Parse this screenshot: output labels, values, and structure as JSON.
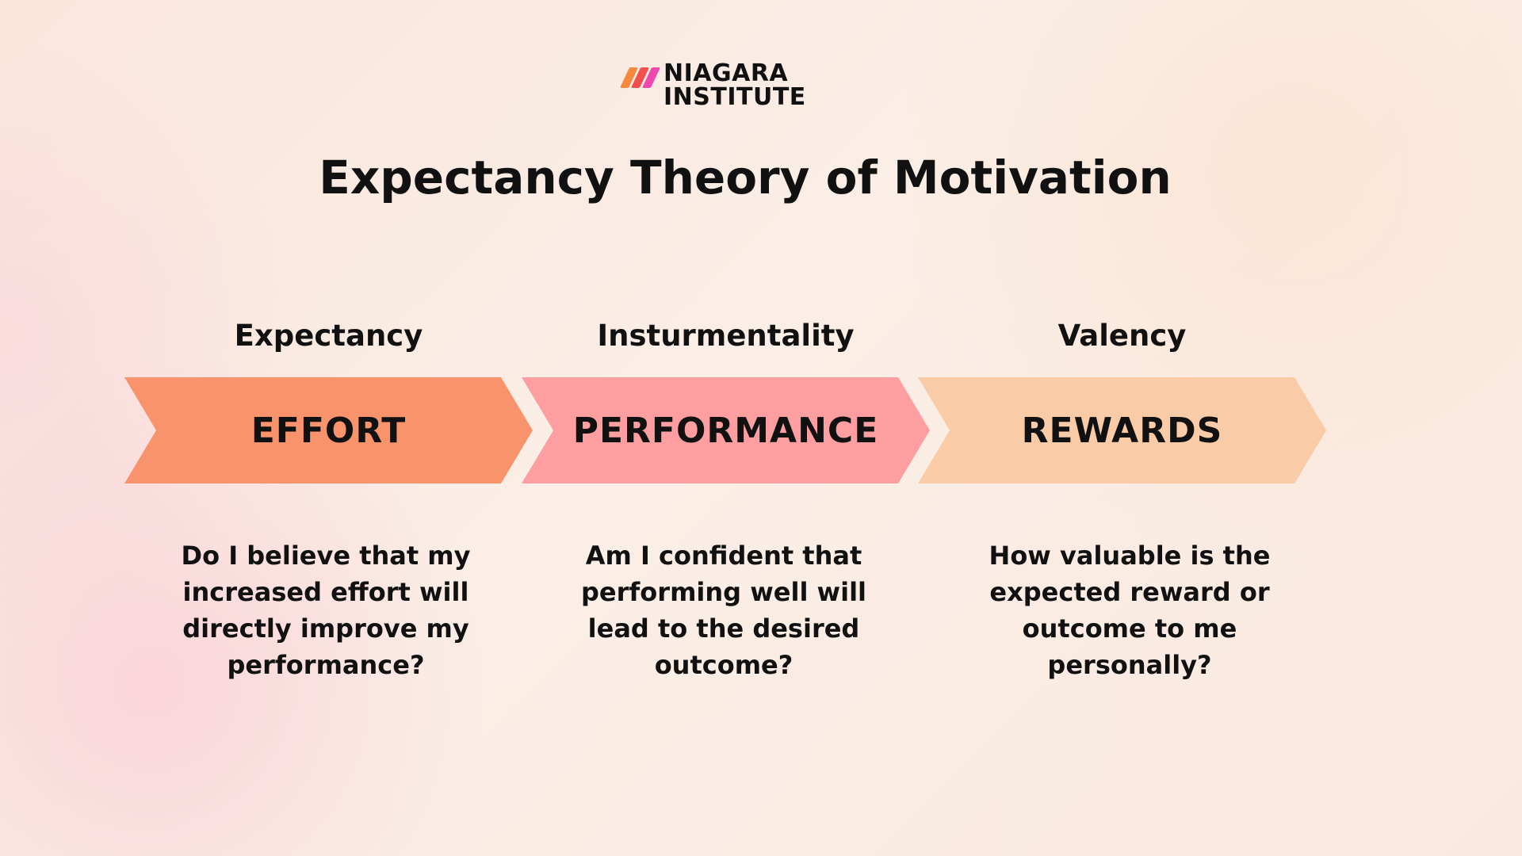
{
  "logo": {
    "line1": "NIAGARA",
    "line2": "INSTITUTE",
    "stripe_colors": [
      "#f7893f",
      "#f24f4f",
      "#ef48b0"
    ]
  },
  "title": "Expectancy Theory of Motivation",
  "stages": [
    {
      "label": "Expectancy",
      "name": "EFFORT",
      "color": "#f9936b",
      "question": "Do I believe that my increased effort will directly improve my performance?"
    },
    {
      "label": "Insturmentality",
      "name": "PERFORMANCE",
      "color": "#fd9ea0",
      "question": "Am I confident that performing well will lead to the desired outcome?"
    },
    {
      "label": "Valency",
      "name": "REWARDS",
      "color": "#f9cba7",
      "question": "How valuable is the expected reward or outcome to me personally?"
    }
  ]
}
